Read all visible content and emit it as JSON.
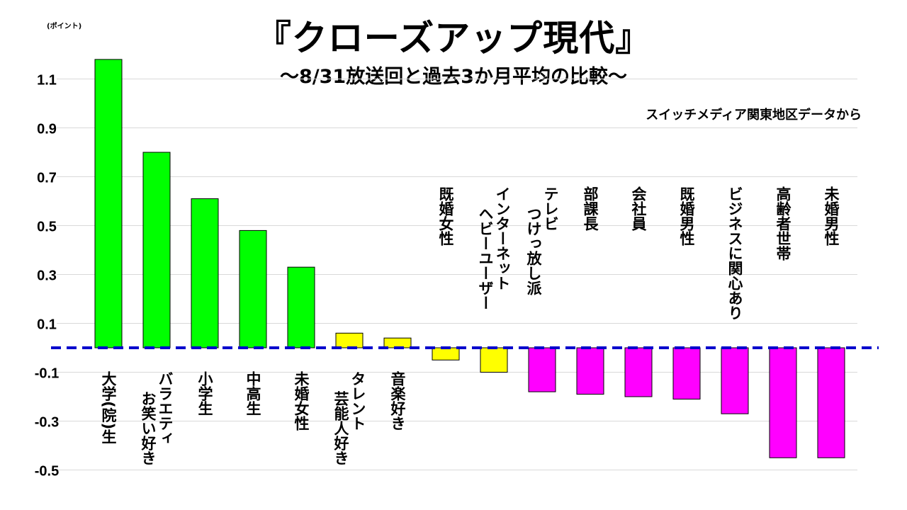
{
  "chart_data": {
    "type": "bar",
    "title": "『クローズアップ現代』",
    "subtitle": "～8/31放送回と過去3か月平均の比較～",
    "source_note": "スイッチメディア関東地区データから",
    "unit_label": "(ポイント)",
    "ylim": [
      -0.5,
      1.2
    ],
    "yticks": [
      1.1,
      0.9,
      0.7,
      0.5,
      0.3,
      0.1,
      -0.1,
      -0.3,
      -0.5
    ],
    "ytick_labels": [
      "1.1",
      "0.9",
      "0.7",
      "0.5",
      "0.3",
      "0.1",
      "-0.1",
      "-0.3",
      "-0.5"
    ],
    "grid": true,
    "zero_line": "dashed blue",
    "colors": {
      "high": "#00ff00",
      "mid": "#ffff00",
      "low": "#ff00ff",
      "zero_line": "#0000cc",
      "grid": "#d9d9d9"
    },
    "categories": [
      {
        "label": [
          "大学(院)生"
        ],
        "value": 1.18,
        "color_group": "high"
      },
      {
        "label": [
          "バラエティ",
          "お笑い好き"
        ],
        "value": 0.8,
        "color_group": "high"
      },
      {
        "label": [
          "小学生"
        ],
        "value": 0.61,
        "color_group": "high"
      },
      {
        "label": [
          "中高生"
        ],
        "value": 0.48,
        "color_group": "high"
      },
      {
        "label": [
          "未婚女性"
        ],
        "value": 0.33,
        "color_group": "high"
      },
      {
        "label": [
          "タレント",
          "芸能人好き"
        ],
        "value": 0.06,
        "color_group": "mid"
      },
      {
        "label": [
          "音楽好き"
        ],
        "value": 0.04,
        "color_group": "mid"
      },
      {
        "label": [
          "既婚女性"
        ],
        "value": -0.05,
        "color_group": "mid"
      },
      {
        "label": [
          "インターネット",
          "ヘビーユーザー"
        ],
        "value": -0.1,
        "color_group": "mid"
      },
      {
        "label": [
          "テレビ",
          "つけっ放し派"
        ],
        "value": -0.18,
        "color_group": "low"
      },
      {
        "label": [
          "部課長"
        ],
        "value": -0.19,
        "color_group": "low"
      },
      {
        "label": [
          "会社員"
        ],
        "value": -0.2,
        "color_group": "low"
      },
      {
        "label": [
          "既婚男性"
        ],
        "value": -0.21,
        "color_group": "low"
      },
      {
        "label": [
          "ビジネスに関心あり"
        ],
        "value": -0.27,
        "color_group": "low"
      },
      {
        "label": [
          "高齢者世帯"
        ],
        "value": -0.45,
        "color_group": "low"
      },
      {
        "label": [
          "未婚男性"
        ],
        "value": -0.45,
        "color_group": "low"
      }
    ]
  }
}
